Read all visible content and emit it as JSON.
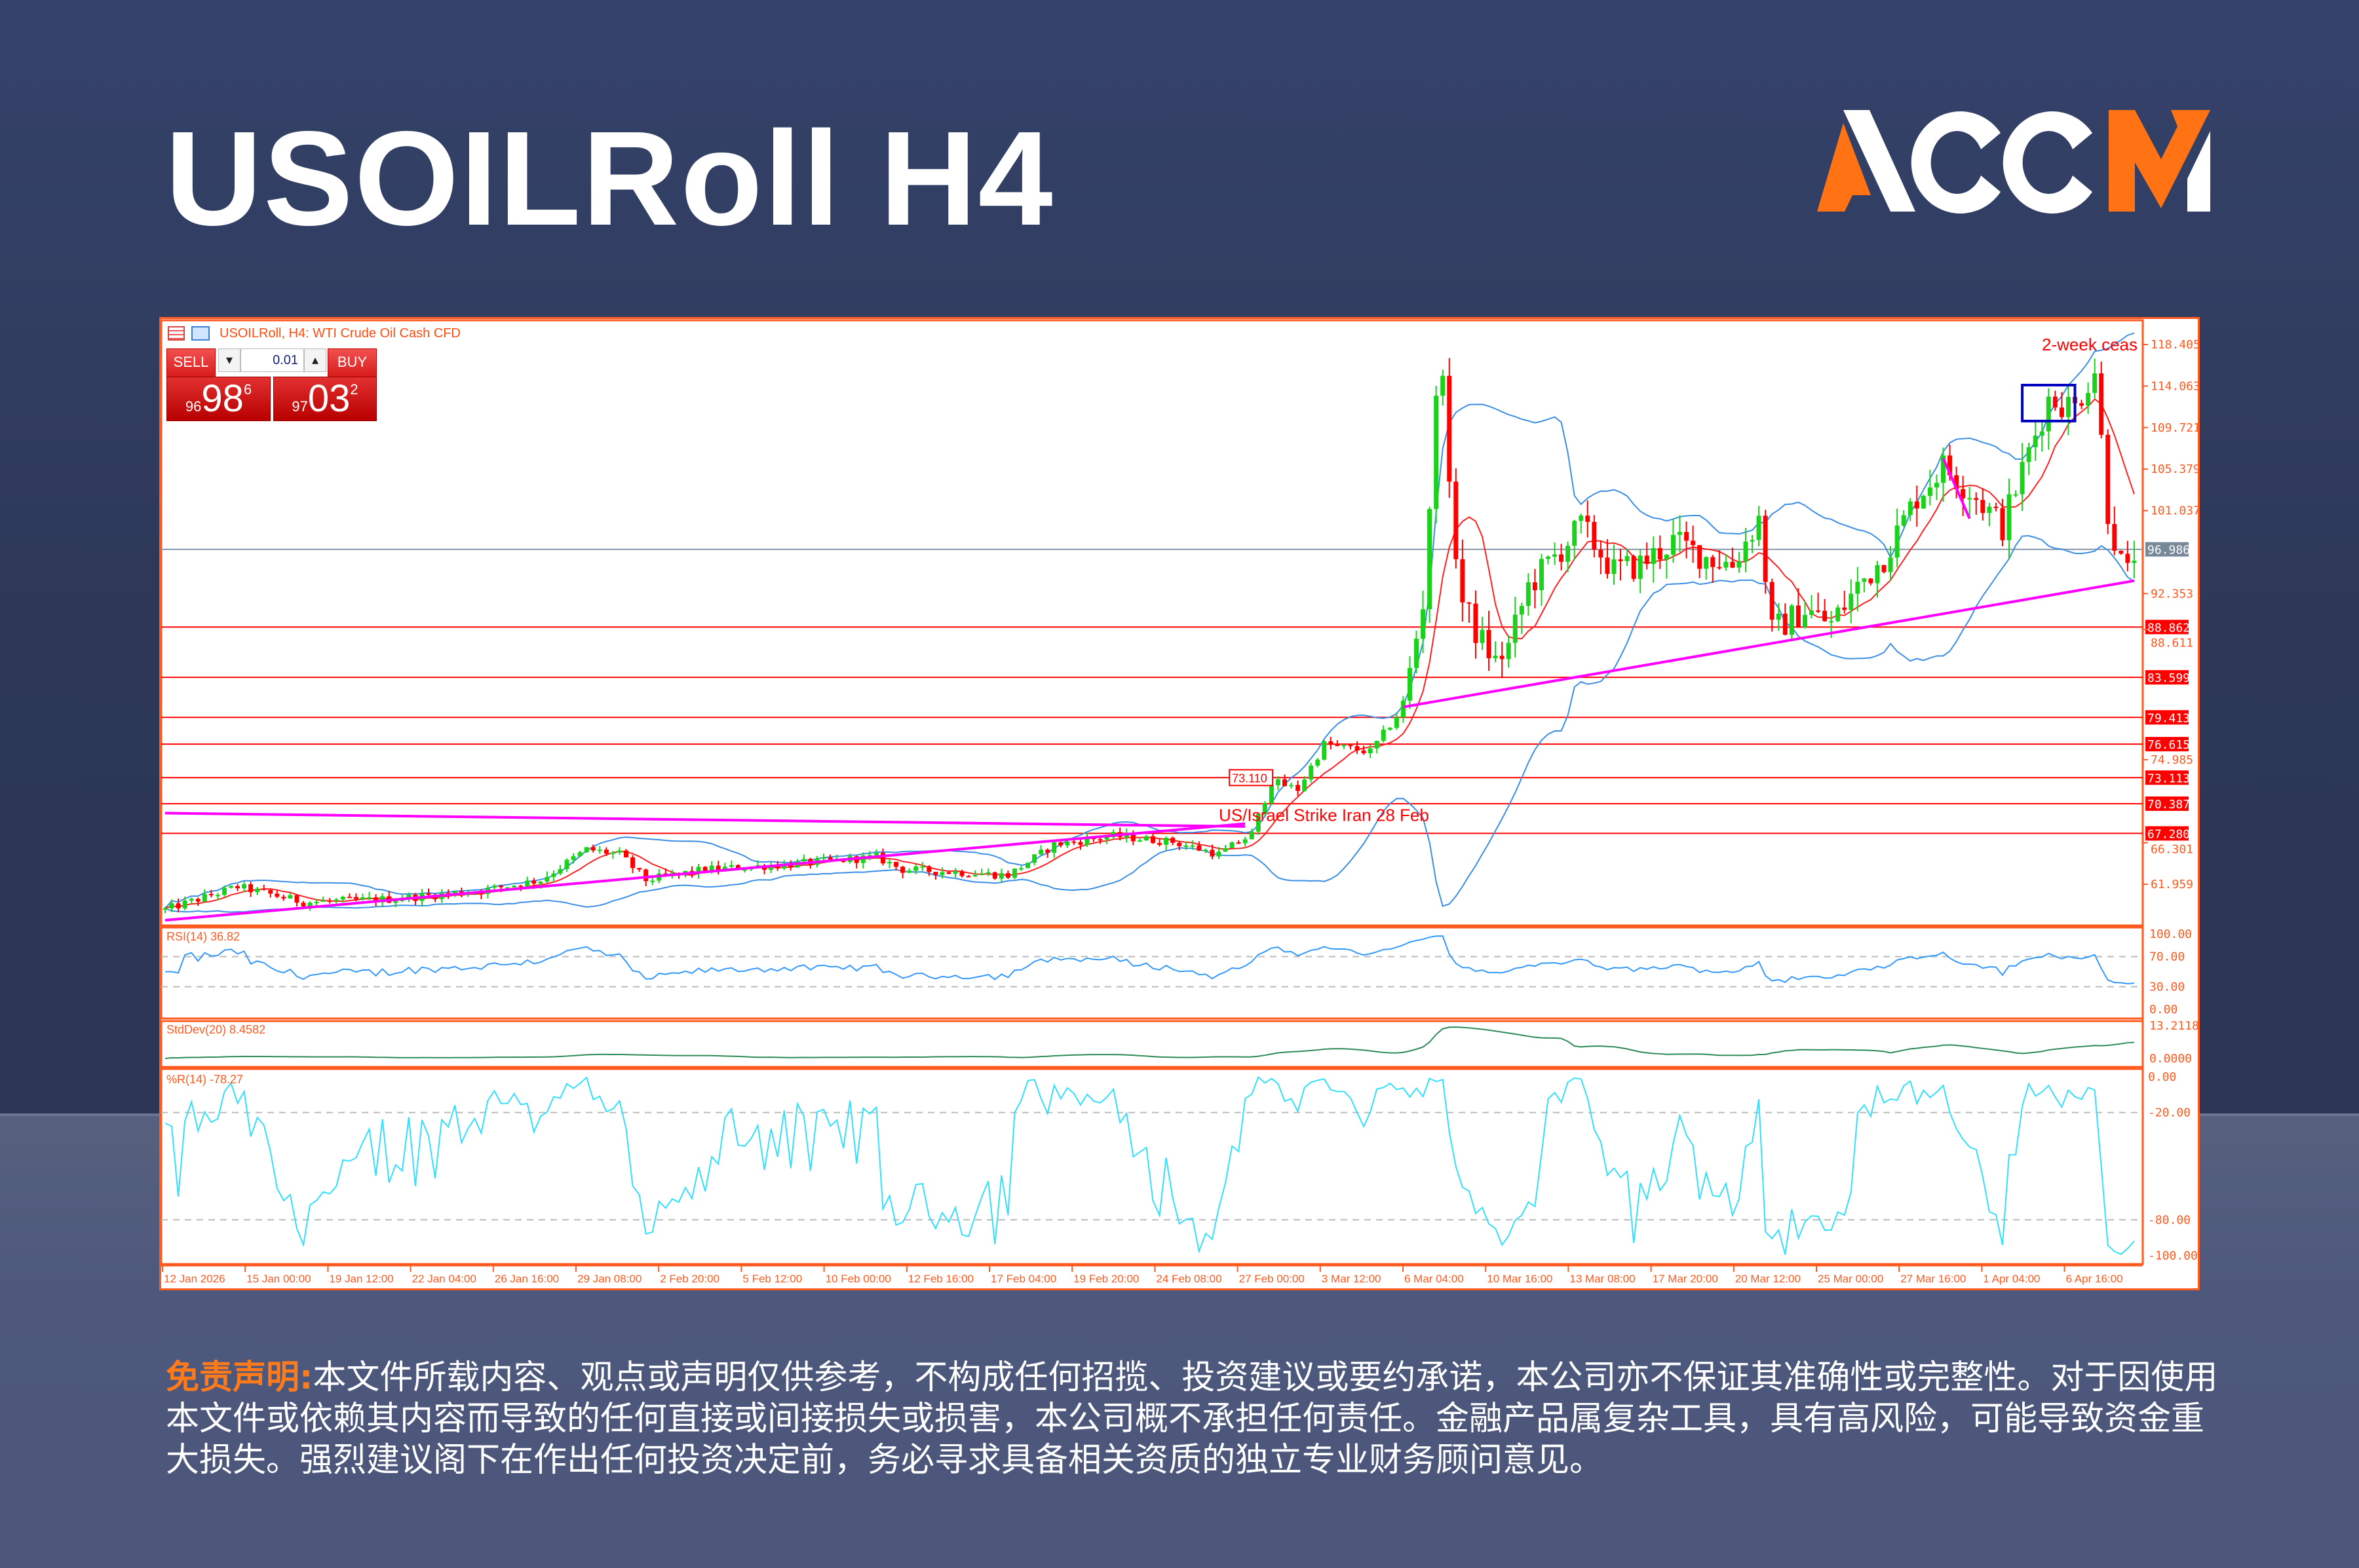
{
  "header": {
    "title": "USOILRoll H4",
    "logo": "ACCM"
  },
  "chart": {
    "title": "USOILRoll, H4:  WTI Crude Oil Cash CFD",
    "sell_label": "SELL",
    "buy_label": "BUY",
    "lot": "0.01",
    "sell_price": {
      "prefix": "96",
      "big": "98",
      "sup": "6"
    },
    "buy_price": {
      "prefix": "97",
      "big": "03",
      "sup": "2"
    }
  },
  "chart_data": {
    "type": "candlestick",
    "symbol": "USOILRoll",
    "timeframe": "H4",
    "candle_count": 300,
    "price_range": [
      57.7,
      120.0
    ],
    "price_keypoints": [
      [
        0,
        59.3
      ],
      [
        11,
        61.7
      ],
      [
        21,
        60.1
      ],
      [
        34,
        60.4
      ],
      [
        48,
        61.3
      ],
      [
        57,
        62.4
      ],
      [
        64,
        65.6
      ],
      [
        69,
        65.1
      ],
      [
        73,
        62.4
      ],
      [
        82,
        63.5
      ],
      [
        94,
        64.0
      ],
      [
        108,
        64.8
      ],
      [
        112,
        63.5
      ],
      [
        121,
        63.2
      ],
      [
        128,
        62.9
      ],
      [
        135,
        66.1
      ],
      [
        144,
        67.0
      ],
      [
        153,
        66.4
      ],
      [
        160,
        65.1
      ],
      [
        165,
        67.2
      ],
      [
        168,
        72.7
      ],
      [
        172,
        71.9
      ],
      [
        176,
        76.6
      ],
      [
        183,
        75.8
      ],
      [
        188,
        80.5
      ],
      [
        191,
        91.5
      ],
      [
        193,
        112.0
      ],
      [
        194,
        116.7
      ],
      [
        195,
        102.5
      ],
      [
        197,
        91.5
      ],
      [
        199,
        88.4
      ],
      [
        202,
        85.2
      ],
      [
        204,
        86.8
      ],
      [
        207,
        93.1
      ],
      [
        211,
        96.2
      ],
      [
        215,
        99.4
      ],
      [
        220,
        94.7
      ],
      [
        224,
        95.4
      ],
      [
        229,
        97.8
      ],
      [
        234,
        96.2
      ],
      [
        238,
        95.4
      ],
      [
        242,
        100.2
      ],
      [
        244,
        88.4
      ],
      [
        249,
        90.7
      ],
      [
        253,
        89.2
      ],
      [
        257,
        93.1
      ],
      [
        261,
        96.2
      ],
      [
        266,
        102.5
      ],
      [
        270,
        105.7
      ],
      [
        275,
        102.5
      ],
      [
        279,
        99.4
      ],
      [
        283,
        107.2
      ],
      [
        286,
        112.7
      ],
      [
        290,
        111.9
      ],
      [
        293,
        115.9
      ],
      [
        295,
        101.0
      ],
      [
        297,
        95.4
      ],
      [
        298,
        94.3
      ],
      [
        299,
        96.6
      ]
    ],
    "price_axis_ticks": [
      "118.405",
      "114.063",
      "109.721",
      "105.379",
      "101.037",
      "92.353",
      "88.611",
      "74.985",
      "66.301",
      "61.959"
    ],
    "current_price": "96.986",
    "level_lines": [
      "88.862",
      "83.599",
      "79.413",
      "76.615",
      "73.113",
      "70.387",
      "67.280"
    ],
    "annotations": [
      {
        "text": "73.110",
        "index": 162,
        "price": 73.11,
        "boxed": true
      },
      {
        "text": "US/Israel Strike Iran 28 Feb",
        "index": 160,
        "price": 69.2
      },
      {
        "text": "2-week ceas",
        "index": 287,
        "price": 118.4
      }
    ],
    "trendlines": [
      {
        "from": [
          0,
          58.2
        ],
        "to": [
          164,
          68.3
        ],
        "color": "#ff00ff"
      },
      {
        "from": [
          0,
          69.4
        ],
        "to": [
          164,
          68.0
        ],
        "color": "#ff00ff"
      },
      {
        "from": [
          188,
          80.5
        ],
        "to": [
          299,
          93.7
        ],
        "color": "#ff00ff"
      },
      {
        "from": [
          270,
          106.5
        ],
        "to": [
          274,
          100.2
        ],
        "color": "#ff00ff"
      }
    ],
    "rectangles": [
      {
        "from": [
          282,
          114.16
        ],
        "to": [
          290,
          110.4
        ],
        "color": "#0000c0"
      }
    ],
    "indicators": {
      "rsi": {
        "label": "RSI(14) 36.82",
        "period": 14,
        "ticks": [
          "100.00",
          "70.00",
          "30.00",
          "0.00"
        ],
        "levels": [
          70,
          30
        ]
      },
      "stddev": {
        "label": "StdDev(20) 8.4582",
        "period": 20,
        "ticks": [
          "13.2118",
          "0.0000"
        ],
        "max": 13.2118
      },
      "wpr": {
        "label": "%R(14) -78.27",
        "period": 14,
        "ticks": [
          "0.00",
          "-20.00",
          "-80.00",
          "-100.00"
        ],
        "levels": [
          -20,
          -80
        ]
      }
    },
    "time_labels": [
      "12 Jan 2026",
      "15 Jan 00:00",
      "19 Jan 12:00",
      "22 Jan 04:00",
      "26 Jan 16:00",
      "29 Jan 08:00",
      "2 Feb 20:00",
      "5 Feb 12:00",
      "10 Feb 00:00",
      "12 Feb 16:00",
      "17 Feb 04:00",
      "19 Feb 20:00",
      "24 Feb 08:00",
      "27 Feb 00:00",
      "3 Mar 12:00",
      "6 Mar 04:00",
      "10 Mar 16:00",
      "13 Mar 08:00",
      "17 Mar 20:00",
      "20 Mar 12:00",
      "25 Mar 00:00",
      "27 Mar 16:00",
      "1 Apr 04:00",
      "6 Apr 16:00"
    ],
    "colors": {
      "bull": "#19d219",
      "bear": "#ff0000",
      "bands": "#3a8ee6",
      "ma": "#ff2020",
      "rsi": "#3399ff",
      "stddev": "#2e8b57",
      "wpr": "#33dfff",
      "axis": "#ff5a1f",
      "level": "#ff0000"
    }
  },
  "disclaimer": {
    "label": "免责声明:",
    "text": "本文件所载内容、观点或声明仅供参考，不构成任何招揽、投资建议或要约承诺，本公司亦不保证其准确性或完整性。对于因使用本文件或依赖其内容而导致的任何直接或间接损失或损害，本公司概不承担任何责任。金融产品属复杂工具，具有高风险，可能导致资金重大损失。强烈建议阁下在作出任何投资决定前，务必寻求具备相关资质的独立专业财务顾问意见。"
  }
}
